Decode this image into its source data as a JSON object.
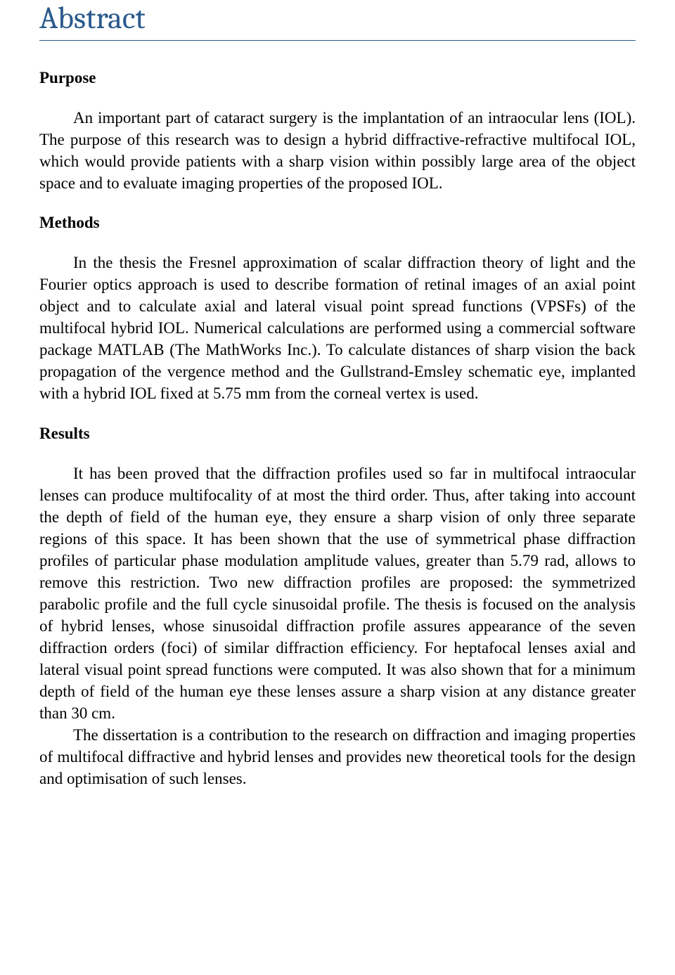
{
  "title": "Abstract",
  "colors": {
    "title_color": "#2a5a8c",
    "rule_color": "#2a5a8c",
    "text_color": "#000000",
    "bg_color": "#ffffff"
  },
  "typography": {
    "title_font": "Cambria",
    "title_size_pt": 32,
    "body_font": "Times New Roman",
    "body_size_pt": 17,
    "heading_weight": 700
  },
  "sections": {
    "purpose": {
      "heading": "Purpose",
      "body": "An important part of cataract surgery is the implantation of an intraocular lens (IOL). The purpose of this research was to design a hybrid diffractive-refractive multifocal IOL, which would provide patients with a sharp vision within possibly large area of the object space and to evaluate imaging properties of the proposed IOL."
    },
    "methods": {
      "heading": "Methods",
      "body": "In the thesis the Fresnel approximation of scalar diffraction theory of light and the Fourier optics approach is used to describe formation of retinal images of an axial point object and to calculate axial and lateral visual point spread functions (VPSFs) of the multifocal hybrid IOL. Numerical calculations are performed using a commercial software package MATLAB (The MathWorks Inc.). To calculate distances of sharp vision the back propagation of the vergence method and the Gullstrand-Emsley schematic eye, implanted with a hybrid IOL fixed at 5.75 mm from the corneal vertex is used."
    },
    "results": {
      "heading": "Results",
      "body1": "It has been proved that the diffraction profiles used so far in multifocal intraocular lenses can produce multifocality of at most the third order. Thus, after taking into account the depth of field of the human eye, they ensure a sharp vision of only three separate regions of this space. It has been shown that the use of symmetrical phase diffraction profiles of particular phase modulation amplitude values, greater than 5.79 rad, allows to remove this restriction. Two new diffraction profiles are proposed: the symmetrized parabolic profile and the full cycle sinusoidal profile. The thesis is focused on the analysis of hybrid lenses, whose sinusoidal diffraction profile assures appearance of the seven diffraction orders (foci) of similar diffraction efficiency. For heptafocal lenses axial and lateral visual point spread functions were computed. It was also shown that for a minimum depth of field of the human eye these lenses assure a sharp vision at any distance greater than 30 cm.",
      "body2": "The dissertation is a contribution to the research on diffraction and imaging properties of multifocal diffractive and hybrid lenses and provides new theoretical tools for the design and optimisation of such lenses."
    }
  }
}
